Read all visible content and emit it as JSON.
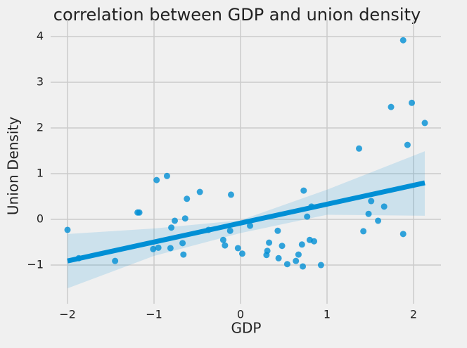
{
  "chart_data": {
    "type": "scatter",
    "title": "correlation between GDP and union density",
    "x_label": "GDP",
    "y_label": "Union Density",
    "color": "#008fd5",
    "grid": true,
    "xlim": [
      -2.195,
      2.317
    ],
    "ylim": [
      -1.846,
      4.37
    ],
    "xticks": [
      {
        "value": -2,
        "label": "−2"
      },
      {
        "value": -1,
        "label": "−1"
      },
      0,
      1,
      2
    ],
    "yticks": [
      {
        "value": -1,
        "label": "−1"
      },
      0,
      1,
      2,
      3,
      4
    ],
    "x": [
      -2.0,
      -1.87,
      -1.45,
      -1.19,
      -1.17,
      -1.01,
      -0.95,
      -0.97,
      -0.85,
      -0.81,
      -0.8,
      -0.76,
      -0.67,
      -0.66,
      -0.64,
      -0.62,
      -0.47,
      -0.37,
      -0.2,
      -0.18,
      -0.12,
      -0.11,
      0.11,
      -0.03,
      0.02,
      0.3,
      0.31,
      0.33,
      0.43,
      0.44,
      0.48,
      0.54,
      0.64,
      0.67,
      0.71,
      0.72,
      0.73,
      0.77,
      0.8,
      0.82,
      0.85,
      0.93,
      1.37,
      1.42,
      1.48,
      1.51,
      1.59,
      1.66,
      1.74,
      1.88,
      1.88,
      1.93,
      1.98,
      2.13
    ],
    "values": [
      -0.23,
      -0.85,
      -0.91,
      0.15,
      0.15,
      -0.65,
      -0.62,
      0.86,
      0.95,
      -0.63,
      -0.18,
      -0.03,
      -0.52,
      -0.77,
      0.02,
      0.45,
      0.6,
      -0.23,
      -0.45,
      -0.57,
      -0.25,
      0.54,
      -0.14,
      -0.63,
      -0.75,
      -0.78,
      -0.69,
      -0.51,
      -0.25,
      -0.85,
      -0.58,
      -0.98,
      -0.91,
      -0.77,
      -0.55,
      -1.03,
      0.63,
      0.06,
      -0.45,
      0.28,
      -0.48,
      -1.0,
      1.55,
      -0.26,
      0.12,
      0.4,
      -0.03,
      0.28,
      2.46,
      -0.32,
      3.92,
      1.63,
      2.55,
      2.11
    ],
    "regression": {
      "x": [
        -2.0,
        2.13
      ],
      "y": [
        -0.91,
        0.8
      ]
    },
    "ci": {
      "x": [
        -2.0,
        -1.0,
        0.0,
        1.0,
        2.13
      ],
      "upper": [
        -0.32,
        -0.2,
        -0.02,
        0.65,
        1.49
      ],
      "lower": [
        -1.51,
        -0.8,
        -0.3,
        0.1,
        0.08
      ]
    }
  }
}
